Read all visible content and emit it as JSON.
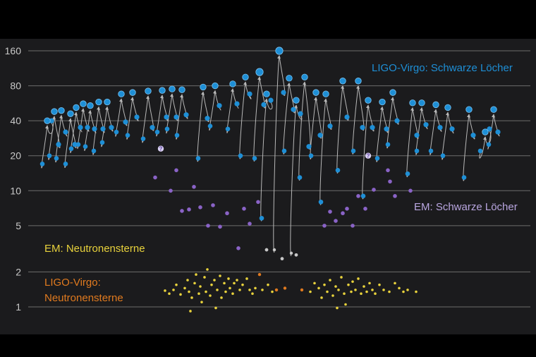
{
  "chart_data": {
    "type": "scatter",
    "y_scale": "log",
    "ylim": [
      0.85,
      170
    ],
    "y_ticks": [
      1,
      2,
      5,
      10,
      20,
      40,
      80,
      160
    ],
    "grid": true,
    "labels": {
      "ligo_bh": "LIGO-Virgo: Schwarze Löcher",
      "em_bh": "EM: Schwarze Löcher",
      "em_ns": "EM: Neutronensterne",
      "ligo_ns_line1": "LIGO-Virgo:",
      "ligo_ns_line2": "Neutronensterne",
      "unknown_marker": "?"
    },
    "colors": {
      "ligo_bh": "#1e8fd6",
      "em_bh": "#8a63c7",
      "em_ns": "#e8d23c",
      "ligo_ns": "#e07a1f",
      "mass_gap": "#c8c8c8",
      "arrow": "#b8b8b8",
      "grid": "#6c6c6c"
    },
    "mergers": [
      {
        "x": 67,
        "a": 17,
        "b": 40,
        "r": 40
      },
      {
        "x": 77,
        "a": 20,
        "b": 25,
        "r": 48
      },
      {
        "x": 87,
        "a": 19,
        "b": 32,
        "r": 49
      },
      {
        "x": 100,
        "a": 17,
        "b": 25,
        "r": 46
      },
      {
        "x": 108,
        "a": 23,
        "b": 35,
        "r": 52
      },
      {
        "x": 118,
        "a": 25,
        "b": 35,
        "r": 56
      },
      {
        "x": 128,
        "a": 24,
        "b": 34,
        "r": 54
      },
      {
        "x": 140,
        "a": 22,
        "b": 34,
        "r": 58
      },
      {
        "x": 152,
        "a": 26,
        "b": 35,
        "r": 58
      },
      {
        "x": 172,
        "a": 32,
        "b": 39,
        "r": 68
      },
      {
        "x": 188,
        "a": 30,
        "b": 43,
        "r": 70
      },
      {
        "x": 210,
        "a": 28,
        "b": 35,
        "r": 72
      },
      {
        "x": 230,
        "a": 32,
        "b": 43,
        "r": 73
      },
      {
        "x": 244,
        "a": 34,
        "b": 43,
        "r": 75
      },
      {
        "x": 258,
        "a": 30,
        "b": 45,
        "r": 74
      },
      {
        "x": 288,
        "a": 19,
        "b": 42,
        "r": 78
      },
      {
        "x": 305,
        "a": 36,
        "b": 54,
        "r": 80
      },
      {
        "x": 330,
        "a": 34,
        "b": 56,
        "r": 83
      },
      {
        "x": 348,
        "a": 20,
        "b": 68,
        "r": 95
      },
      {
        "x": 368,
        "a": 19,
        "b": 55,
        "r": 105
      },
      {
        "x": 378,
        "a": 5.8,
        "b": 60,
        "r": 68
      },
      {
        "x": 396,
        "a": 3.1,
        "b": 70,
        "r": 160
      },
      {
        "x": 410,
        "a": 22,
        "b": 50,
        "r": 93
      },
      {
        "x": 420,
        "a": 2.9,
        "b": 46,
        "r": 60
      },
      {
        "x": 432,
        "a": 13,
        "b": 24,
        "r": 95
      },
      {
        "x": 448,
        "a": 20,
        "b": 30,
        "r": 70
      },
      {
        "x": 462,
        "a": 8,
        "b": 36,
        "r": 68
      },
      {
        "x": 486,
        "a": 15,
        "b": 43,
        "r": 88
      },
      {
        "x": 508,
        "a": 22,
        "b": 35,
        "r": 88
      },
      {
        "x": 522,
        "a": 9,
        "b": 35,
        "r": 60
      },
      {
        "x": 542,
        "a": 19,
        "b": 34,
        "r": 58
      },
      {
        "x": 557,
        "a": 25,
        "b": 40,
        "r": 70
      },
      {
        "x": 585,
        "a": 14,
        "b": 30,
        "r": 57
      },
      {
        "x": 598,
        "a": 22,
        "b": 37,
        "r": 57
      },
      {
        "x": 618,
        "a": 22,
        "b": 35,
        "r": 55
      },
      {
        "x": 635,
        "a": 20,
        "b": 34,
        "r": 52
      },
      {
        "x": 665,
        "a": 13,
        "b": 30,
        "r": 50
      },
      {
        "x": 688,
        "a": 22,
        "b": 34,
        "r": 32
      },
      {
        "x": 700,
        "a": 25,
        "b": 32,
        "r": 50
      }
    ],
    "em_bh": [
      {
        "x": 220,
        "y": 13
      },
      {
        "x": 242,
        "y": 10
      },
      {
        "x": 250,
        "y": 15
      },
      {
        "x": 258,
        "y": 6.7
      },
      {
        "x": 268,
        "y": 6.9
      },
      {
        "x": 275,
        "y": 10.8
      },
      {
        "x": 284,
        "y": 7.2
      },
      {
        "x": 295,
        "y": 5.0
      },
      {
        "x": 302,
        "y": 7.5
      },
      {
        "x": 312,
        "y": 4.9
      },
      {
        "x": 322,
        "y": 6.4
      },
      {
        "x": 338,
        "y": 3.2
      },
      {
        "x": 346,
        "y": 7.0
      },
      {
        "x": 354,
        "y": 5.2
      },
      {
        "x": 366,
        "y": 8.0
      },
      {
        "x": 460,
        "y": 5.0
      },
      {
        "x": 468,
        "y": 6.6
      },
      {
        "x": 476,
        "y": 5.5
      },
      {
        "x": 486,
        "y": 6.4
      },
      {
        "x": 492,
        "y": 7.0
      },
      {
        "x": 500,
        "y": 5.0
      },
      {
        "x": 508,
        "y": 9.0
      },
      {
        "x": 518,
        "y": 7.0
      },
      {
        "x": 530,
        "y": 10.2
      },
      {
        "x": 550,
        "y": 15.0
      },
      {
        "x": 553,
        "y": 12.0
      },
      {
        "x": 560,
        "y": 9.0
      },
      {
        "x": 582,
        "y": 10.0
      }
    ],
    "unknown": [
      {
        "x": 228,
        "y": 23
      },
      {
        "x": 522,
        "y": 20
      }
    ],
    "mass_gap": [
      {
        "x": 378,
        "y": 3.1
      },
      {
        "x": 400,
        "y": 2.6
      },
      {
        "x": 420,
        "y": 2.8
      }
    ],
    "ligo_ns": [
      {
        "x": 368,
        "y": 1.9
      },
      {
        "x": 392,
        "y": 1.4
      },
      {
        "x": 404,
        "y": 1.45
      },
      {
        "x": 428,
        "y": 1.4
      }
    ],
    "em_ns": [
      {
        "x": 234,
        "y": 1.38
      },
      {
        "x": 240,
        "y": 1.3
      },
      {
        "x": 246,
        "y": 1.4
      },
      {
        "x": 250,
        "y": 1.55
      },
      {
        "x": 256,
        "y": 1.28
      },
      {
        "x": 262,
        "y": 1.45
      },
      {
        "x": 266,
        "y": 1.7
      },
      {
        "x": 268,
        "y": 1.35
      },
      {
        "x": 270,
        "y": 0.92
      },
      {
        "x": 272,
        "y": 1.2
      },
      {
        "x": 276,
        "y": 1.6
      },
      {
        "x": 278,
        "y": 1.9
      },
      {
        "x": 282,
        "y": 1.3
      },
      {
        "x": 284,
        "y": 1.5
      },
      {
        "x": 286,
        "y": 1.1
      },
      {
        "x": 290,
        "y": 1.8
      },
      {
        "x": 292,
        "y": 1.35
      },
      {
        "x": 294,
        "y": 2.1
      },
      {
        "x": 298,
        "y": 1.25
      },
      {
        "x": 300,
        "y": 1.55
      },
      {
        "x": 304,
        "y": 1.7
      },
      {
        "x": 306,
        "y": 0.98
      },
      {
        "x": 308,
        "y": 1.4
      },
      {
        "x": 312,
        "y": 1.85
      },
      {
        "x": 314,
        "y": 1.2
      },
      {
        "x": 318,
        "y": 1.6
      },
      {
        "x": 320,
        "y": 1.35
      },
      {
        "x": 324,
        "y": 1.75
      },
      {
        "x": 326,
        "y": 1.45
      },
      {
        "x": 330,
        "y": 1.3
      },
      {
        "x": 332,
        "y": 1.6
      },
      {
        "x": 336,
        "y": 1.7
      },
      {
        "x": 340,
        "y": 1.4
      },
      {
        "x": 344,
        "y": 1.55
      },
      {
        "x": 350,
        "y": 1.75
      },
      {
        "x": 354,
        "y": 1.4
      },
      {
        "x": 358,
        "y": 1.3
      },
      {
        "x": 362,
        "y": 1.45
      },
      {
        "x": 372,
        "y": 1.4
      },
      {
        "x": 380,
        "y": 1.55
      },
      {
        "x": 386,
        "y": 1.35
      },
      {
        "x": 440,
        "y": 1.35
      },
      {
        "x": 446,
        "y": 1.6
      },
      {
        "x": 452,
        "y": 1.45
      },
      {
        "x": 456,
        "y": 1.2
      },
      {
        "x": 460,
        "y": 1.55
      },
      {
        "x": 464,
        "y": 1.35
      },
      {
        "x": 468,
        "y": 1.7
      },
      {
        "x": 472,
        "y": 1.25
      },
      {
        "x": 476,
        "y": 1.5
      },
      {
        "x": 478,
        "y": 0.98
      },
      {
        "x": 480,
        "y": 1.4
      },
      {
        "x": 484,
        "y": 1.8
      },
      {
        "x": 488,
        "y": 1.3
      },
      {
        "x": 490,
        "y": 1.05
      },
      {
        "x": 494,
        "y": 1.55
      },
      {
        "x": 498,
        "y": 1.35
      },
      {
        "x": 500,
        "y": 1.65
      },
      {
        "x": 504,
        "y": 1.4
      },
      {
        "x": 508,
        "y": 1.75
      },
      {
        "x": 512,
        "y": 1.3
      },
      {
        "x": 516,
        "y": 1.5
      },
      {
        "x": 520,
        "y": 1.35
      },
      {
        "x": 524,
        "y": 1.6
      },
      {
        "x": 528,
        "y": 1.4
      },
      {
        "x": 532,
        "y": 1.3
      },
      {
        "x": 538,
        "y": 1.55
      },
      {
        "x": 544,
        "y": 1.4
      },
      {
        "x": 552,
        "y": 1.35
      },
      {
        "x": 560,
        "y": 1.6
      },
      {
        "x": 566,
        "y": 1.45
      },
      {
        "x": 572,
        "y": 1.35
      },
      {
        "x": 578,
        "y": 1.4
      },
      {
        "x": 590,
        "y": 1.35
      }
    ]
  }
}
